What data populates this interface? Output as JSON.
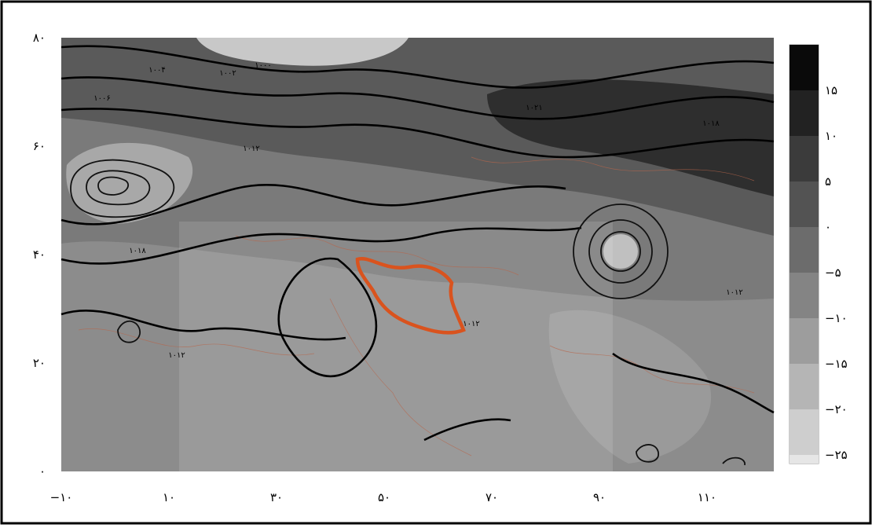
{
  "map": {
    "x_axis": {
      "ticks": [
        "−۱۰",
        "۱۰",
        "۳۰",
        "۵۰",
        "۷۰",
        "۹۰",
        "۱۱۰"
      ]
    },
    "y_axis": {
      "ticks": [
        "۸۰",
        "۶۰",
        "۴۰",
        "۲۰",
        "۰"
      ]
    },
    "colorbar": {
      "labels": [
        "۱۵",
        "۱۰",
        "۵",
        "۰",
        "−۵",
        "−۱۰",
        "−۱۵",
        "−۲۰",
        "−۲۵"
      ]
    },
    "contour_labels": [
      "۱۰۰۴",
      "۱۰۰۲",
      "۱۰۰۰",
      "۱۰۰۶",
      "۱۰۲۱",
      "۱۰۱۸",
      "۱۰۱۲",
      "۱۰۱۸",
      "۱۰۱۲",
      "۱۰۱۲",
      "۱۰۱۲"
    ]
  }
}
